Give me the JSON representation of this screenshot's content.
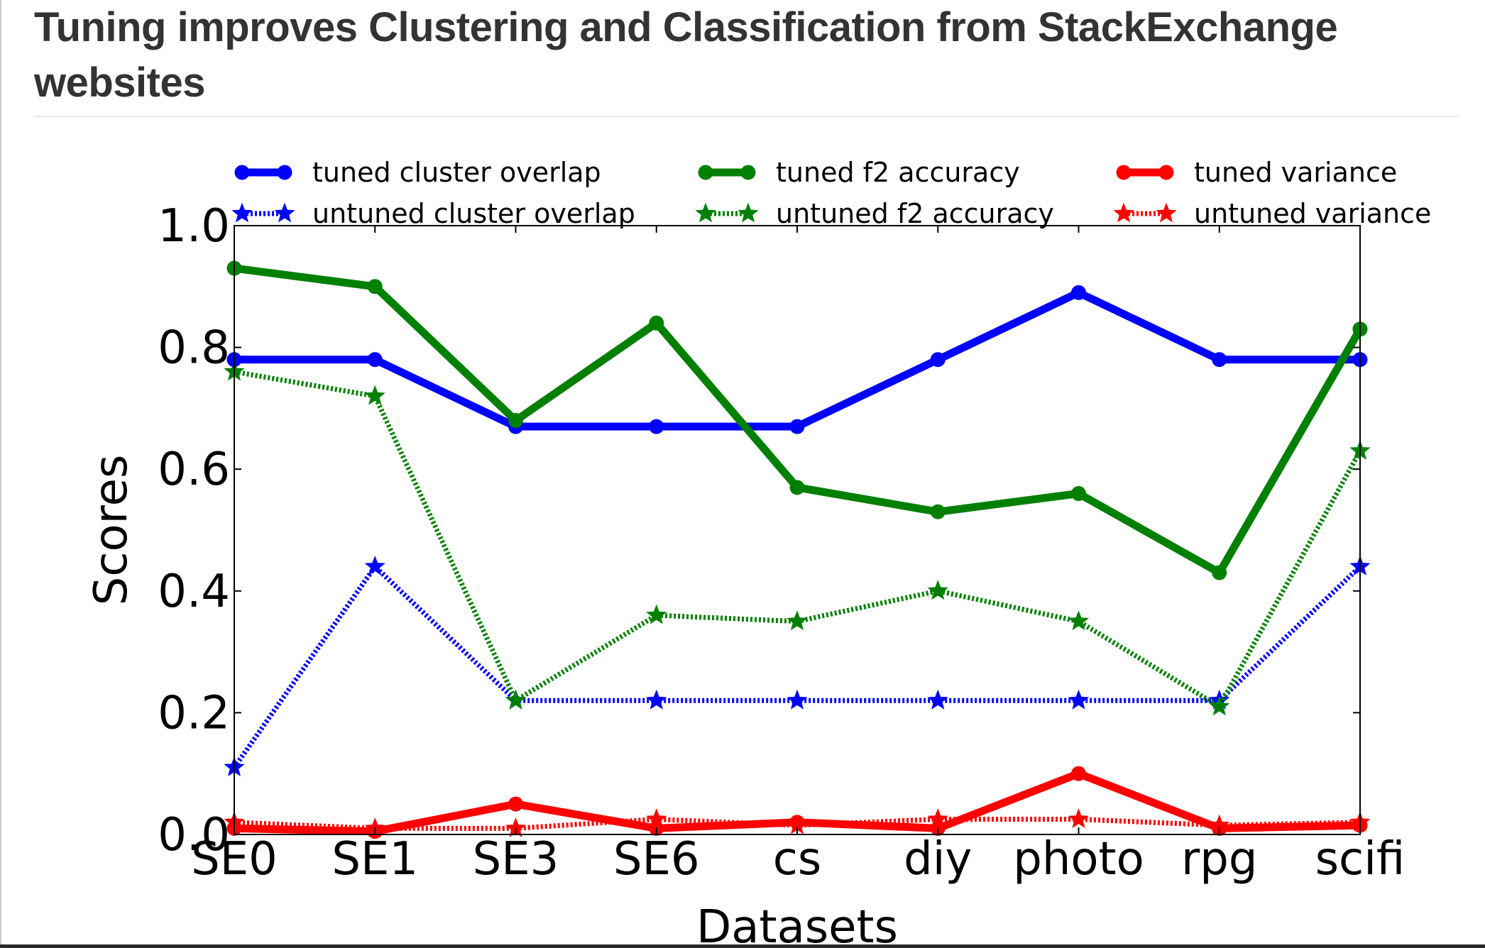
{
  "page": {
    "title": "Tuning improves Clustering and Classification from StackExchange websites"
  },
  "chart_data": {
    "type": "line",
    "title": "",
    "xlabel": "Datasets",
    "ylabel": "Scores",
    "ylim": [
      0.0,
      1.0
    ],
    "yticks": [
      "0.0",
      "0.2",
      "0.4",
      "0.6",
      "0.8",
      "1.0"
    ],
    "categories": [
      "SE0",
      "SE1",
      "SE3",
      "SE6",
      "cs",
      "diy",
      "photo",
      "rpg",
      "scifi"
    ],
    "legend": {
      "placement": "top",
      "columns": 3
    },
    "grid": false,
    "series": [
      {
        "name": "tuned cluster overlap",
        "color": "#0000ff",
        "style": "solid",
        "marker": "circle",
        "values": [
          0.78,
          0.78,
          0.67,
          0.67,
          0.67,
          0.78,
          0.89,
          0.78,
          0.78
        ]
      },
      {
        "name": "untuned cluster overlap",
        "color": "#0000ff",
        "style": "dotted",
        "marker": "star",
        "values": [
          0.11,
          0.44,
          0.22,
          0.22,
          0.22,
          0.22,
          0.22,
          0.22,
          0.44
        ]
      },
      {
        "name": "tuned f2 accuracy",
        "color": "#008000",
        "style": "solid",
        "marker": "circle",
        "values": [
          0.93,
          0.9,
          0.68,
          0.84,
          0.57,
          0.53,
          0.56,
          0.43,
          0.83
        ]
      },
      {
        "name": "untuned f2 accuracy",
        "color": "#008000",
        "style": "dotted",
        "marker": "star",
        "values": [
          0.76,
          0.72,
          0.22,
          0.36,
          0.35,
          0.4,
          0.35,
          0.21,
          0.63
        ]
      },
      {
        "name": "tuned variance",
        "color": "#ff0000",
        "style": "solid",
        "marker": "circle",
        "values": [
          0.01,
          0.005,
          0.05,
          0.01,
          0.02,
          0.01,
          0.1,
          0.01,
          0.015
        ]
      },
      {
        "name": "untuned variance",
        "color": "#ff0000",
        "style": "dotted",
        "marker": "star",
        "values": [
          0.02,
          0.01,
          0.01,
          0.025,
          0.015,
          0.025,
          0.025,
          0.015,
          0.02
        ]
      }
    ]
  }
}
